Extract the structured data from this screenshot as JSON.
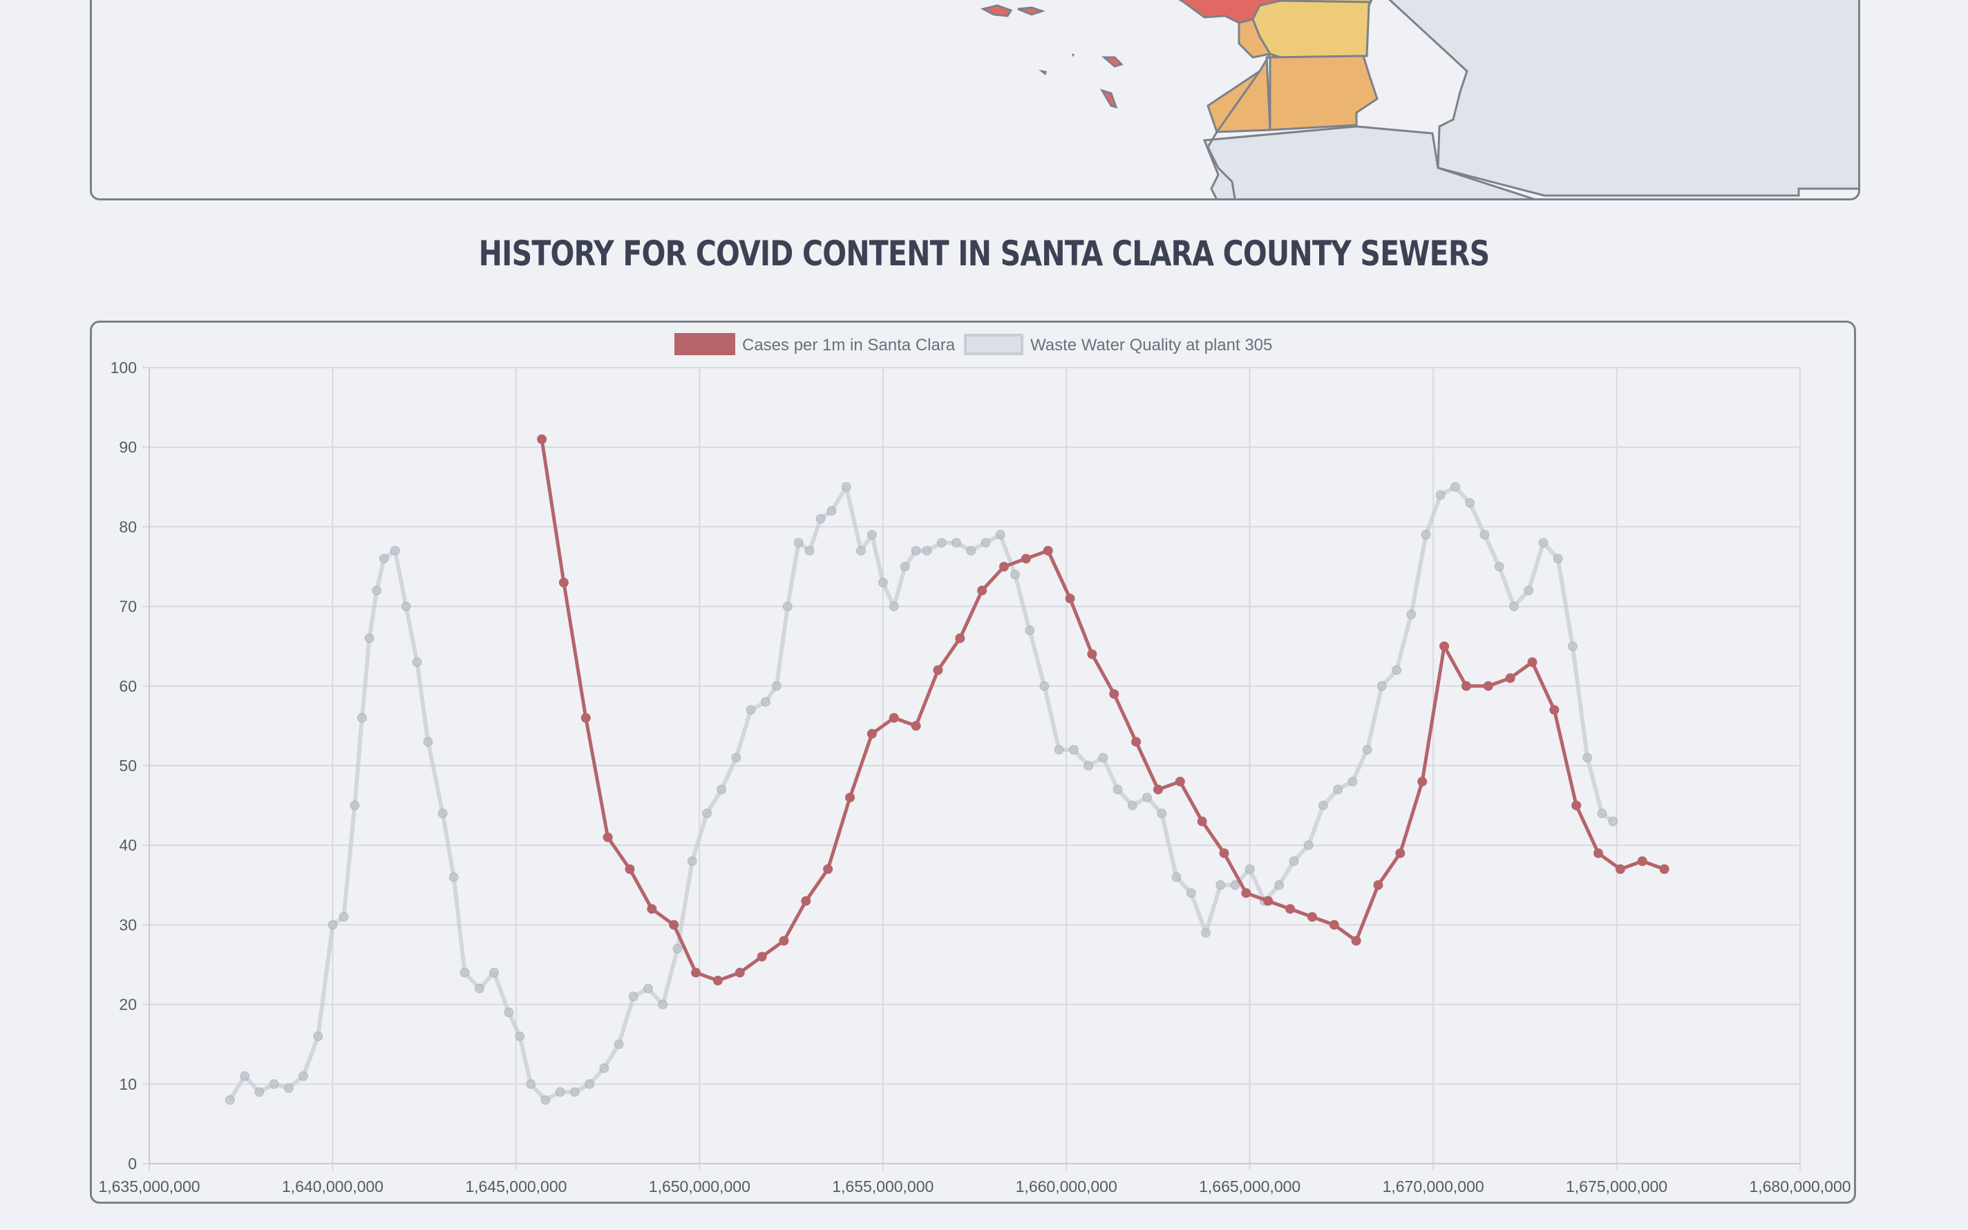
{
  "page": {
    "title": "History for covid content in Santa Clara County sewers"
  },
  "map": {
    "fill_colors": {
      "high": "#e06a63",
      "mid_yellow": "#edcb78",
      "mid_orange": "#ebb571",
      "none": "#dfe3ea",
      "border": "#7d808b"
    }
  },
  "chart_data": {
    "type": "line",
    "title": "",
    "xlabel": "",
    "ylabel": "",
    "xlim": [
      1635000000,
      1680000000
    ],
    "ylim": [
      0,
      100
    ],
    "grid": true,
    "legend_position": "top",
    "x_ticks": [
      "1,635,000,000",
      "1,640,000,000",
      "1,645,000,000",
      "1,650,000,000",
      "1,655,000,000",
      "1,660,000,000",
      "1,665,000,000",
      "1,670,000,000",
      "1,675,000,000",
      "1,680,000,000"
    ],
    "y_ticks": [
      "0",
      "10",
      "20",
      "30",
      "40",
      "50",
      "60",
      "70",
      "80",
      "90",
      "100"
    ],
    "series": [
      {
        "name": "Cases per 1m in Santa Clara",
        "color": "#b5646a",
        "x": [
          1645700000,
          1646300000,
          1646900000,
          1647500000,
          1648100000,
          1648700000,
          1649300000,
          1649900000,
          1650500000,
          1651100000,
          1651700000,
          1652300000,
          1652900000,
          1653500000,
          1654100000,
          1654700000,
          1655300000,
          1655900000,
          1656500000,
          1657100000,
          1657700000,
          1658300000,
          1658900000,
          1659500000,
          1660100000,
          1660700000,
          1661300000,
          1661900000,
          1662500000,
          1663100000,
          1663700000,
          1664300000,
          1664900000,
          1665500000,
          1666100000,
          1666700000,
          1667300000,
          1667900000,
          1668500000,
          1669100000,
          1669700000,
          1670300000,
          1670900000,
          1671500000,
          1672100000,
          1672700000,
          1673300000,
          1673900000,
          1674500000,
          1675100000,
          1675700000,
          1676300000
        ],
        "y": [
          91,
          73,
          56,
          41,
          37,
          32,
          30,
          24,
          23,
          24,
          26,
          28,
          33,
          37,
          46,
          54,
          56,
          55,
          62,
          66,
          72,
          75,
          76,
          77,
          71,
          64,
          59,
          53,
          47,
          48,
          43,
          39,
          34,
          33,
          32,
          31,
          30,
          28,
          35,
          39,
          48,
          65,
          60,
          60,
          61,
          63,
          57,
          45,
          39,
          37,
          38,
          37
        ]
      },
      {
        "name": "Waste Water Quality at plant 305",
        "color": "#c9ccd4",
        "x": [
          1637200000,
          1637600000,
          1638000000,
          1638400000,
          1638800000,
          1639200000,
          1639600000,
          1640000000,
          1640300000,
          1640600000,
          1640800000,
          1641000000,
          1641200000,
          1641400000,
          1641700000,
          1642000000,
          1642300000,
          1642600000,
          1643000000,
          1643300000,
          1643600000,
          1644000000,
          1644400000,
          1644800000,
          1645100000,
          1645400000,
          1645800000,
          1646200000,
          1646600000,
          1647000000,
          1647400000,
          1647800000,
          1648200000,
          1648600000,
          1649000000,
          1649400000,
          1649800000,
          1650200000,
          1650600000,
          1651000000,
          1651400000,
          1651800000,
          1652100000,
          1652400000,
          1652700000,
          1653000000,
          1653300000,
          1653600000,
          1654000000,
          1654400000,
          1654700000,
          1655000000,
          1655300000,
          1655600000,
          1655900000,
          1656200000,
          1656600000,
          1657000000,
          1657400000,
          1657800000,
          1658200000,
          1658600000,
          1659000000,
          1659400000,
          1659800000,
          1660200000,
          1660600000,
          1661000000,
          1661400000,
          1661800000,
          1662200000,
          1662600000,
          1663000000,
          1663400000,
          1663800000,
          1664200000,
          1664600000,
          1665000000,
          1665400000,
          1665800000,
          1666200000,
          1666600000,
          1667000000,
          1667400000,
          1667800000,
          1668200000,
          1668600000,
          1669000000,
          1669400000,
          1669800000,
          1670200000,
          1670600000,
          1671000000,
          1671400000,
          1671800000,
          1672200000,
          1672600000,
          1673000000,
          1673400000,
          1673800000,
          1674200000,
          1674600000,
          1674900000
        ],
        "y": [
          8,
          11,
          9,
          10,
          9.5,
          11,
          16,
          30,
          31,
          45,
          56,
          66,
          72,
          76,
          77,
          70,
          63,
          53,
          44,
          36,
          24,
          22,
          24,
          19,
          16,
          10,
          8,
          9,
          9,
          10,
          12,
          15,
          21,
          22,
          20,
          27,
          38,
          44,
          47,
          51,
          57,
          58,
          60,
          70,
          78,
          77,
          81,
          82,
          85,
          77,
          79,
          73,
          70,
          75,
          77,
          77,
          78,
          78,
          77,
          78,
          79,
          74,
          67,
          60,
          52,
          52,
          50,
          51,
          47,
          45,
          46,
          44,
          36,
          34,
          29,
          35,
          35,
          37,
          33,
          35,
          38,
          40,
          45,
          47,
          48,
          52,
          60,
          62,
          69,
          79,
          84,
          85,
          83,
          79,
          75,
          70,
          72,
          78,
          76,
          65,
          51,
          44,
          43
        ]
      }
    ]
  }
}
